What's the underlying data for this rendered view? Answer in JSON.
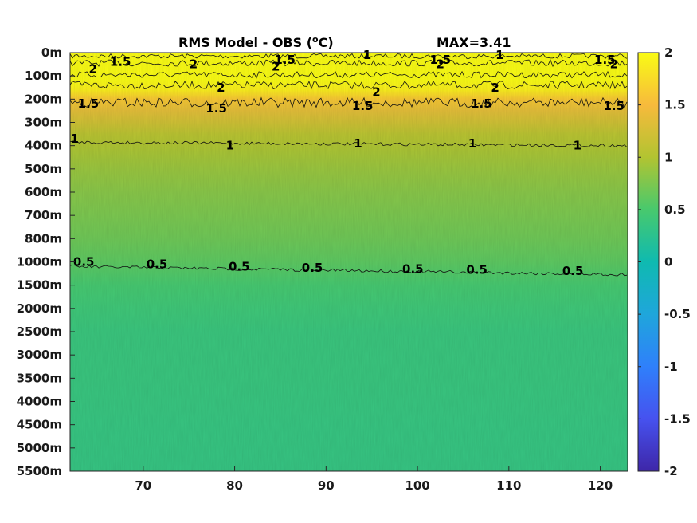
{
  "chart_data": {
    "type": "heatmap",
    "title": "RMS Model - OBS (",
    "title_unit_sup": "o",
    "title_unit": "C)",
    "max_label": "MAX=3.41",
    "x": {
      "ticks": [
        70,
        80,
        90,
        100,
        110,
        120
      ],
      "tick_labels": [
        "70",
        "80",
        "90",
        "100",
        "110",
        "120"
      ],
      "range": [
        62,
        123
      ]
    },
    "y": {
      "tick_labels": [
        "0m",
        "100m",
        "200m",
        "300m",
        "400m",
        "500m",
        "600m",
        "700m",
        "800m",
        "1000m",
        "1500m",
        "2000m",
        "2500m",
        "3000m",
        "3500m",
        "4000m",
        "4500m",
        "5000m",
        "5500m"
      ],
      "scale": "non-uniform depth levels (top = surface)"
    },
    "colorbar": {
      "range": [
        -2,
        2
      ],
      "ticks": [
        2,
        1.5,
        1,
        0.5,
        0,
        -0.5,
        -1,
        -1.5,
        -2
      ],
      "tick_labels": [
        "2",
        "1.5",
        "1",
        "0.5",
        "0",
        "-0.5",
        "-1",
        "-1.5",
        "-2"
      ],
      "colormap": "parula"
    },
    "profile": {
      "depth_index": [
        0,
        0.4,
        0.8,
        1.2,
        1.6,
        2.0,
        2.5,
        3.0,
        3.5,
        4.0,
        5.0,
        6.0,
        7.0,
        8.0,
        9.0,
        10.0,
        11.0,
        12.0,
        14.0,
        16.0,
        18.0
      ],
      "rms": [
        2.3,
        2.4,
        2.2,
        2.1,
        1.9,
        1.6,
        1.35,
        1.2,
        1.05,
        0.98,
        0.88,
        0.8,
        0.74,
        0.68,
        0.6,
        0.48,
        0.42,
        0.38,
        0.37,
        0.35,
        0.34
      ]
    },
    "contours": [
      {
        "level": "2",
        "labels_x": [
          64.5,
          75.5,
          84.5,
          78.5,
          95.5,
          102.5,
          108.5,
          121.5
        ],
        "labels_depth_index": [
          0.7,
          0.5,
          0.6,
          1.5,
          1.7,
          0.5,
          1.5,
          0.5
        ]
      },
      {
        "level": "1.5",
        "labels_x": [
          64,
          67.5,
          78,
          85.5,
          94,
          102.5,
          107,
          120.5,
          121.5
        ],
        "labels_depth_index": [
          2.2,
          0.4,
          2.4,
          0.3,
          2.3,
          0.3,
          2.2,
          0.3,
          2.3
        ]
      },
      {
        "level": "1",
        "labels_x": [
          94.5,
          62.5,
          79.5,
          93.5,
          106,
          109,
          117.5
        ],
        "labels_depth_index": [
          0.1,
          3.7,
          4.0,
          3.9,
          3.9,
          0.1,
          4.0
        ]
      },
      {
        "level": "0.5",
        "labels_x": [
          63.5,
          71.5,
          80.5,
          88.5,
          99.5,
          106.5,
          117
        ],
        "labels_depth_index": [
          9.0,
          9.1,
          9.2,
          9.25,
          9.3,
          9.35,
          9.4
        ]
      }
    ]
  }
}
